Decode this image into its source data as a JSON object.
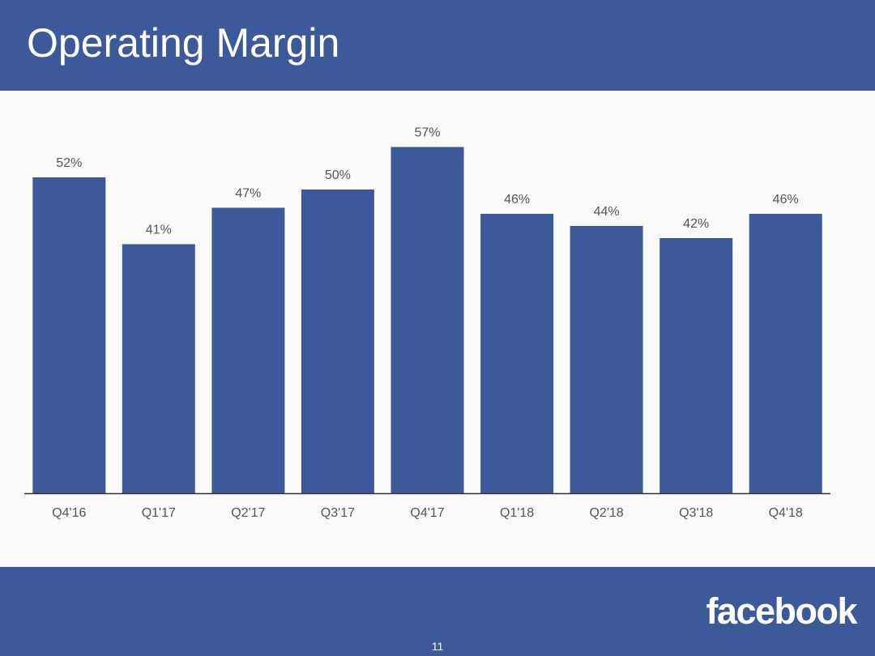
{
  "slide": {
    "title": "Operating Margin",
    "logo_text": "facebook",
    "page_number": "11"
  },
  "colors": {
    "brand": "#3c5a99",
    "bar": "#3c5a99",
    "label": "#555555",
    "axis": "#333333"
  },
  "chart_data": {
    "type": "bar",
    "title": "",
    "xlabel": "",
    "ylabel": "",
    "ylim": [
      0,
      60
    ],
    "grid": false,
    "categories": [
      "Q4'16",
      "Q1'17",
      "Q2'17",
      "Q3'17",
      "Q4'17",
      "Q1'18",
      "Q2'18",
      "Q3'18",
      "Q4'18"
    ],
    "values": [
      52,
      41,
      47,
      50,
      57,
      46,
      44,
      42,
      46
    ],
    "value_labels": [
      "52%",
      "41%",
      "47%",
      "50%",
      "57%",
      "46%",
      "44%",
      "42%",
      "46%"
    ]
  }
}
